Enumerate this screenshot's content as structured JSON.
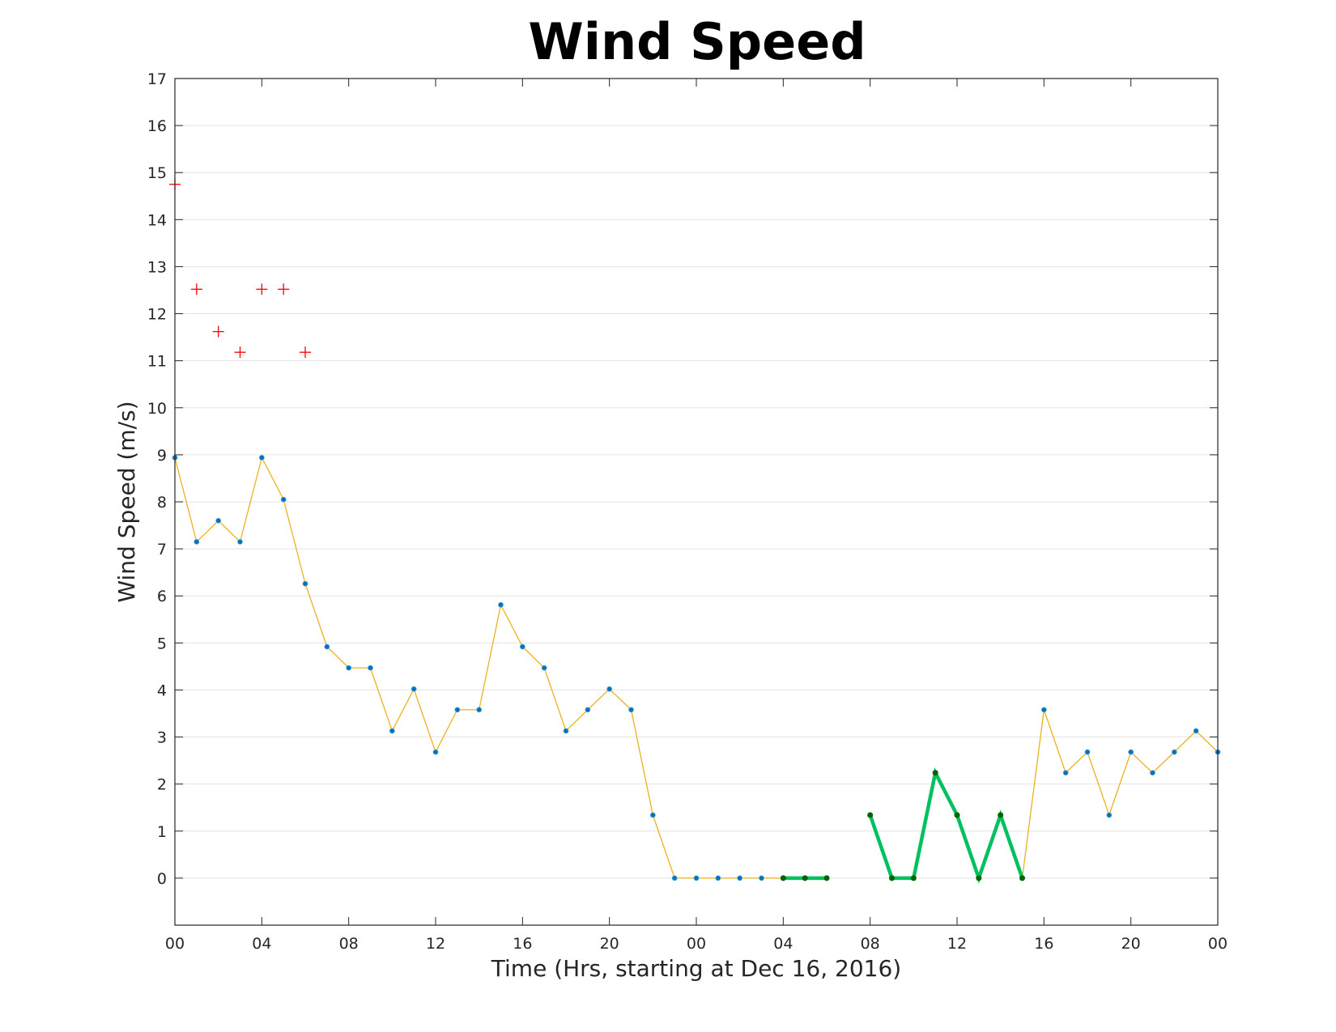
{
  "chart_data": {
    "type": "line",
    "title": "Wind Speed",
    "xlabel": "Time (Hrs, starting at Dec 16, 2016)",
    "ylabel": "Wind Speed (m/s)",
    "xlim": [
      0,
      48
    ],
    "ylim": [
      -1,
      17
    ],
    "grid": "horizontal",
    "x_ticks": [
      0,
      4,
      8,
      12,
      16,
      20,
      24,
      28,
      32,
      36,
      40,
      44,
      48
    ],
    "x_tick_labels": [
      "00",
      "04",
      "08",
      "12",
      "16",
      "20",
      "00",
      "04",
      "08",
      "12",
      "16",
      "20",
      "00"
    ],
    "y_ticks": [
      0,
      1,
      2,
      3,
      4,
      5,
      6,
      7,
      8,
      9,
      10,
      11,
      12,
      13,
      14,
      15,
      16,
      17
    ],
    "y_tick_labels": [
      "0",
      "1",
      "2",
      "3",
      "4",
      "5",
      "6",
      "7",
      "8",
      "9",
      "10",
      "11",
      "12",
      "13",
      "14",
      "15",
      "16",
      "17"
    ],
    "series": [
      {
        "style": "line-with-dots",
        "line_color": "#EDB120",
        "marker_color": "#0072BD",
        "x": [
          0,
          1,
          2,
          3,
          4,
          5,
          6,
          7,
          8,
          9,
          10,
          11,
          12,
          13,
          14,
          15,
          16,
          17,
          18,
          19,
          20,
          21,
          22,
          23,
          24,
          25,
          26,
          27,
          28,
          29,
          30,
          31,
          32,
          33,
          34,
          35,
          36,
          37,
          38,
          39,
          40,
          41,
          42,
          43,
          44,
          45,
          46,
          47,
          48
        ],
        "y": [
          8.94,
          7.15,
          7.6,
          7.15,
          8.94,
          8.05,
          6.26,
          4.92,
          4.47,
          4.47,
          3.13,
          4.02,
          2.68,
          3.58,
          3.58,
          5.81,
          4.92,
          4.47,
          3.13,
          3.58,
          4.02,
          3.58,
          1.34,
          0,
          0,
          0,
          0,
          0,
          0,
          0,
          0,
          null,
          1.34,
          0,
          0,
          2.24,
          1.34,
          0,
          1.34,
          0,
          3.58,
          2.24,
          2.68,
          1.34,
          2.68,
          2.24,
          2.68,
          3.13,
          2.68
        ]
      },
      {
        "style": "plus-markers",
        "color": "#FF0000",
        "x": [
          0,
          1,
          2,
          3,
          4,
          5,
          6
        ],
        "y": [
          14.75,
          12.52,
          11.62,
          11.18,
          12.52,
          12.52,
          11.18
        ]
      },
      {
        "style": "thick-line-segments",
        "color": "#00C060",
        "marker_color": "#006400",
        "segments": [
          {
            "x": [
              28,
              29,
              30
            ],
            "y": [
              0,
              0,
              0
            ]
          },
          {
            "x": [
              32,
              33,
              34,
              35,
              36,
              37,
              38,
              39
            ],
            "y": [
              1.34,
              0,
              0,
              2.24,
              1.34,
              0,
              1.34,
              0
            ]
          }
        ]
      }
    ]
  }
}
